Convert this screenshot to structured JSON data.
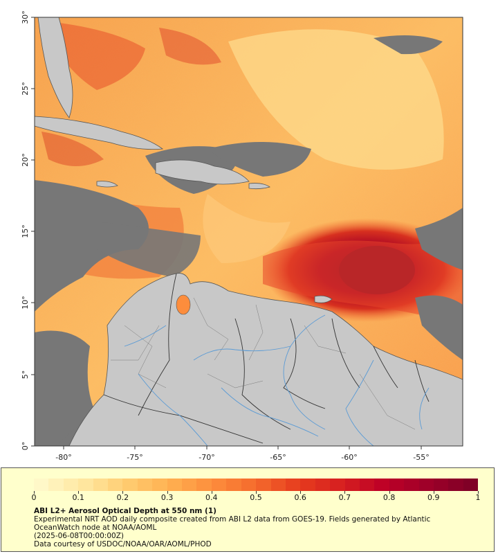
{
  "map": {
    "lon_ticks": [
      "-80°",
      "-75°",
      "-70°",
      "-65°",
      "-60°",
      "-55°"
    ],
    "lat_ticks": [
      "0°",
      "5°",
      "10°",
      "15°",
      "20°",
      "25°",
      "30°"
    ],
    "lon_range": [
      -82.3,
      -52.0
    ],
    "lat_range": [
      0,
      30
    ],
    "colors": {
      "land": "#c8c8c8",
      "no_data": "#777777",
      "rivers": "#5b9bd5",
      "borders": "#444444"
    }
  },
  "legend": {
    "ticks": [
      "0",
      "0.1",
      "0.2",
      "0.3",
      "0.4",
      "0.5",
      "0.6",
      "0.7",
      "0.8",
      "0.9",
      "1"
    ],
    "colors": [
      "#fff8c8",
      "#ffe7a0",
      "#ffcc70",
      "#ffb050",
      "#fd8d3c",
      "#f46a2c",
      "#e63c1e",
      "#d61f20",
      "#bd0026",
      "#9e0029",
      "#800026"
    ],
    "title": "ABI L2+ Aerosol Optical Depth at 550 nm (1)",
    "line1": "Experimental NRT AOD daily composite created from ABI L2 data from GOES-19. Fields generated by Atlantic",
    "line2": "OceanWatch node at NOAA/AOML",
    "line3": "(2025-06-08T00:00:00Z)",
    "line4": "Data courtesy of USDOC/NOAA/OAR/AOML/PHOD"
  }
}
